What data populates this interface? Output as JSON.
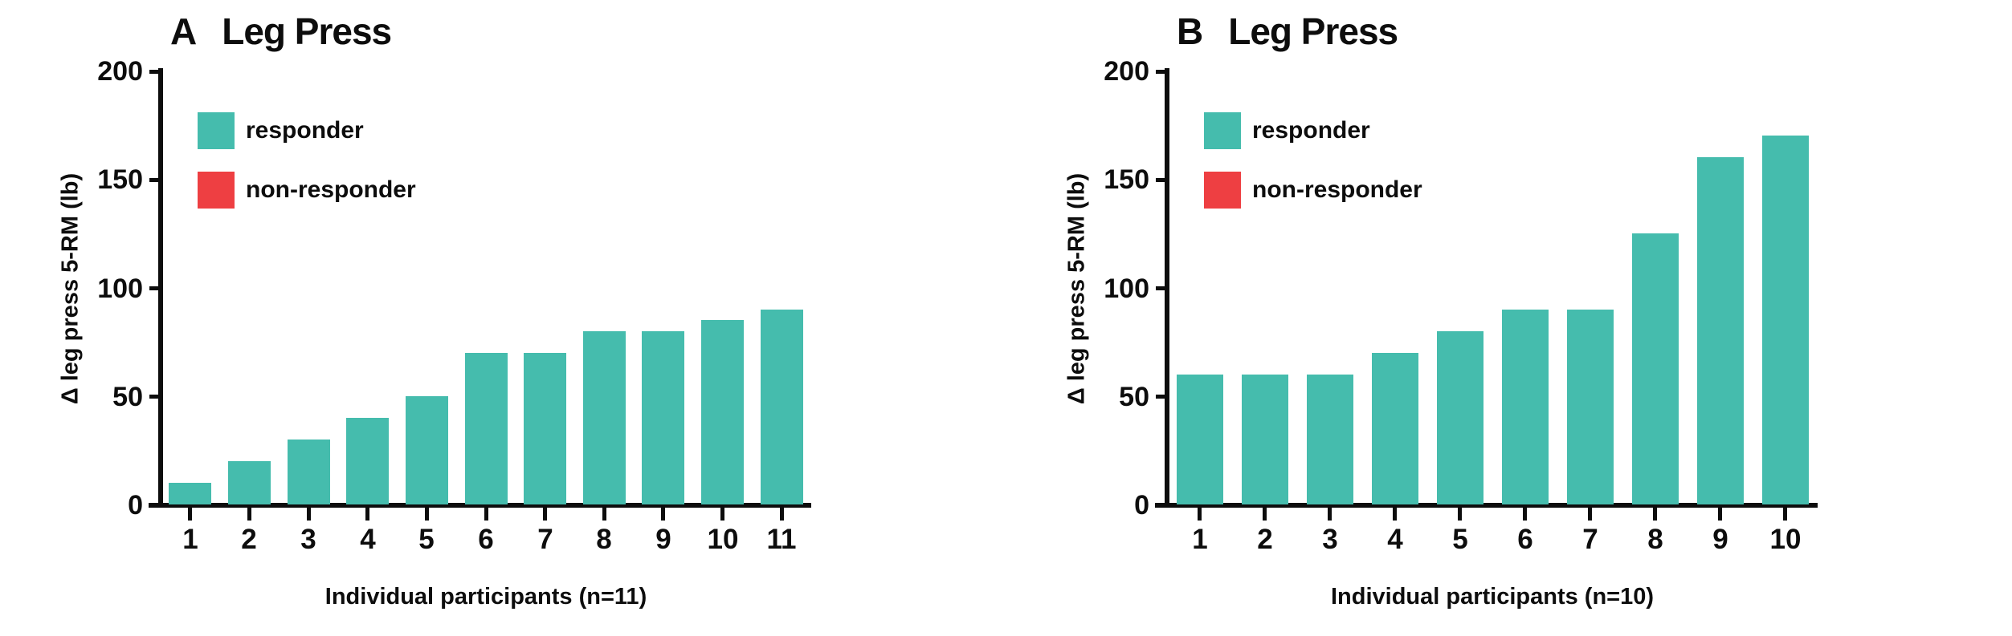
{
  "colors": {
    "responder": "#45BCAD",
    "non_responder": "#EE3F42",
    "axis": "#0d0d0d"
  },
  "legend": {
    "responder_label": "responder",
    "non_responder_label": "non-responder"
  },
  "chart_data": [
    {
      "type": "bar",
      "panel_letter": "A",
      "title": "Leg Press",
      "categories": [
        "1",
        "2",
        "3",
        "4",
        "5",
        "6",
        "7",
        "8",
        "9",
        "10",
        "11"
      ],
      "values": [
        10,
        20,
        30,
        40,
        50,
        70,
        70,
        80,
        80,
        85,
        90
      ],
      "series_name": "responder",
      "bar_color_key": "responder",
      "xlabel": "Individual participants (n=11)",
      "ylabel": "Δ leg press 5-RM (lb)",
      "ylim": [
        0,
        200
      ],
      "yticks": [
        0,
        50,
        100,
        150,
        200
      ],
      "legend_entries": [
        "responder",
        "non-responder"
      ],
      "legend_position": "top-left-inside",
      "grid": false
    },
    {
      "type": "bar",
      "panel_letter": "B",
      "title": "Leg Press",
      "categories": [
        "1",
        "2",
        "3",
        "4",
        "5",
        "6",
        "7",
        "8",
        "9",
        "10"
      ],
      "values": [
        60,
        60,
        60,
        70,
        80,
        90,
        90,
        125,
        160,
        170
      ],
      "series_name": "responder",
      "bar_color_key": "responder",
      "xlabel": "Individual participants (n=10)",
      "ylabel": "Δ leg press 5-RM (lb)",
      "ylim": [
        0,
        200
      ],
      "yticks": [
        0,
        50,
        100,
        150,
        200
      ],
      "legend_entries": [
        "responder",
        "non-responder"
      ],
      "legend_position": "top-left-inside",
      "grid": false
    }
  ]
}
